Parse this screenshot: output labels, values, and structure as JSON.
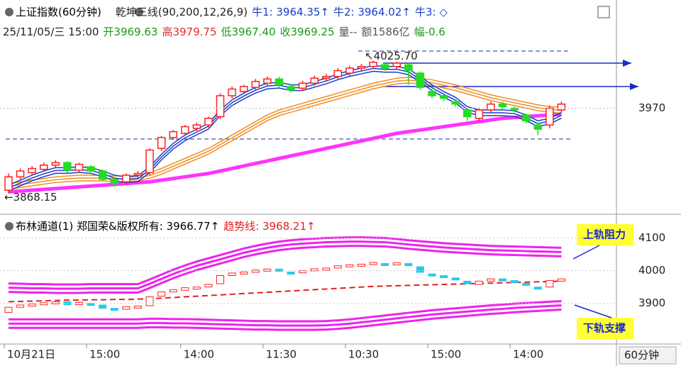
{
  "chart_data": [
    {
      "type": "candlestick",
      "title": "上证指数(60分钟)",
      "legend_items": [
        {
          "text": "乾坤三线(90,200,12,26,9)",
          "color": "#222222"
        },
        {
          "text": "牛1: 3964.35↑",
          "color": "#1a3cc8"
        },
        {
          "text": "牛2: 3964.02↑",
          "color": "#1a3cc8"
        },
        {
          "text": "牛3: ◇",
          "color": "#1a3cc8"
        }
      ],
      "quote_items": [
        {
          "text": "25/11/05/三 15:00",
          "color": "#222222"
        },
        {
          "text": "开3969.63",
          "color": "#1a9a1a"
        },
        {
          "text": "高3979.75",
          "color": "#e03030"
        },
        {
          "text": "低3967.40",
          "color": "#1a9a1a"
        },
        {
          "text": "收3969.25",
          "color": "#1a9a1a"
        },
        {
          "text": "量--",
          "color": "#555555"
        },
        {
          "text": "额1586亿",
          "color": "#555555"
        },
        {
          "text": "幅-0.6",
          "color": "#1a9a1a"
        }
      ],
      "x": [
        "10月21日",
        null,
        null,
        null,
        null,
        null,
        null,
        "15:00",
        null,
        null,
        null,
        null,
        null,
        null,
        null,
        "14:00",
        null,
        null,
        null,
        null,
        null,
        null,
        "11:30",
        null,
        null,
        null,
        null,
        null,
        null,
        "10:30",
        null,
        null,
        null,
        null,
        null,
        null,
        "15:00",
        null,
        null,
        null,
        null,
        null,
        null,
        "14:00",
        null,
        null,
        null,
        null
      ],
      "open": [
        3872,
        3888,
        3893,
        3897,
        3902,
        3905,
        3896,
        3900,
        3895,
        3885,
        3882,
        3890,
        3893,
        3922,
        3935,
        3940,
        3946,
        3950,
        3960,
        3985,
        3990,
        3995,
        4000,
        4005,
        3996,
        3994,
        4000,
        4006,
        4008,
        4012,
        4018,
        4020,
        4022,
        4020,
        4022,
        4012,
        3990,
        3985,
        3978,
        3968,
        3958,
        3968,
        3975,
        3970,
        3962,
        3950,
        3950,
        3968
      ],
      "high": [
        3892,
        3898,
        3901,
        3905,
        3908,
        3907,
        3905,
        3902,
        3897,
        3887,
        3892,
        3895,
        3922,
        3937,
        3944,
        3950,
        3953,
        3960,
        3988,
        3996,
        3998,
        4005,
        4008,
        4008,
        3999,
        4003,
        4009,
        4011,
        4018,
        4021,
        4023,
        4027,
        4024,
        4025.7,
        4024,
        4014,
        3993,
        3988,
        3980,
        3970,
        3970,
        3978,
        3978,
        3972,
        3964,
        3952,
        3973,
        3978
      ],
      "low": [
        3868.15,
        3885,
        3890,
        3894,
        3899,
        3893,
        3893,
        3892,
        3883,
        3876,
        3879,
        3887,
        3890,
        3919,
        3932,
        3937,
        3943,
        3947,
        3957,
        3982,
        3987,
        3992,
        3997,
        3995,
        3989,
        3991,
        3997,
        4003,
        4005,
        4009,
        4015,
        4017,
        4015,
        4017,
        3998,
        3992,
        3982,
        3979,
        3972,
        3955,
        3955,
        3965,
        3969,
        3965,
        3952,
        3938,
        3946,
        3965
      ],
      "close": [
        3888,
        3895,
        3898,
        3902,
        3905,
        3896,
        3903,
        3895,
        3885,
        3880,
        3890,
        3892,
        3920,
        3935,
        3942,
        3948,
        3950,
        3958,
        3985,
        3993,
        3996,
        4002,
        4005,
        3998,
        3992,
        4000,
        4006,
        4008,
        4015,
        4018,
        4020,
        4025,
        4018,
        4024,
        4015,
        3995,
        3985,
        3982,
        3975,
        3960,
        3968,
        3975,
        3972,
        3968,
        3955,
        3945,
        3970,
        3975
      ],
      "lines": [
        {
          "color": "#ff33ff",
          "values": [
            3870,
            3871,
            3872,
            3873,
            3874,
            3875,
            3876,
            3877,
            3878,
            3879,
            3880,
            3881,
            3882,
            3884,
            3886,
            3888,
            3890,
            3892,
            3895,
            3898,
            3901,
            3904,
            3907,
            3910,
            3913,
            3916,
            3919,
            3922,
            3925,
            3928,
            3931,
            3934,
            3937,
            3940,
            3942,
            3944,
            3946,
            3948,
            3950,
            3952,
            3954,
            3956,
            3958,
            3959,
            3960,
            3961,
            3962,
            3963
          ]
        },
        {
          "color": "#f08c1e",
          "values": [
            3880,
            3882,
            3884,
            3886,
            3888,
            3889,
            3890,
            3890,
            3890,
            3889,
            3889,
            3890,
            3893,
            3898,
            3904,
            3910,
            3916,
            3922,
            3930,
            3938,
            3946,
            3954,
            3962,
            3968,
            3972,
            3976,
            3980,
            3984,
            3988,
            3992,
            3996,
            4000,
            4003,
            4006,
            4007,
            4006,
            4004,
            4001,
            3998,
            3994,
            3990,
            3986,
            3983,
            3980,
            3977,
            3974,
            3972,
            3971
          ]
        },
        {
          "color": "#1a3cc8",
          "values": [
            3878,
            3884,
            3890,
            3895,
            3899,
            3899,
            3900,
            3899,
            3895,
            3890,
            3888,
            3889,
            3900,
            3915,
            3928,
            3938,
            3945,
            3952,
            3968,
            3980,
            3988,
            3995,
            4000,
            4001,
            3998,
            3998,
            4002,
            4006,
            4011,
            4015,
            4018,
            4021,
            4020,
            4020,
            4017,
            4008,
            3998,
            3990,
            3983,
            3972,
            3968,
            3968,
            3968,
            3967,
            3962,
            3955,
            3958,
            3965
          ]
        }
      ],
      "high_label": "↖4025.70",
      "low_label": "←3868.15",
      "ylim": [
        3845,
        4091
      ],
      "yticks": [
        3970
      ]
    },
    {
      "type": "line",
      "title": "布林通道(1) 郑国荣&版权所有: 3966.77↑",
      "subtitle": "趋势线: 3968.21↑",
      "series": [
        {
          "color": "#ee22ee",
          "values": [
            3948,
            3947,
            3946,
            3946,
            3945,
            3945,
            3945,
            3946,
            3946,
            3946,
            3946,
            3946,
            3960,
            3975,
            3990,
            4003,
            4015,
            4025,
            4035,
            4045,
            4055,
            4063,
            4070,
            4076,
            4080,
            4083,
            4085,
            4087,
            4088,
            4089,
            4089,
            4088,
            4087,
            4084,
            4080,
            4077,
            4074,
            4071,
            4069,
            4067,
            4065,
            4063,
            4062,
            4061,
            4060,
            4059,
            4058,
            4057
          ]
        },
        {
          "color": "#e02020",
          "values": [
            3905,
            3906,
            3907,
            3908,
            3909,
            3910,
            3910,
            3911,
            3911,
            3912,
            3912,
            3913,
            3914,
            3916,
            3918,
            3920,
            3922,
            3924,
            3926,
            3928,
            3930,
            3932,
            3934,
            3936,
            3938,
            3940,
            3942,
            3944,
            3946,
            3948,
            3950,
            3952,
            3953,
            3954,
            3955,
            3956,
            3957,
            3958,
            3959,
            3960,
            3961,
            3962,
            3963,
            3964,
            3965,
            3966,
            3967,
            3968
          ]
        },
        {
          "color": "#ee22ee",
          "values": [
            3838,
            3838,
            3838,
            3838,
            3838,
            3838,
            3838,
            3838,
            3838,
            3838,
            3838,
            3838,
            3840,
            3840,
            3839,
            3839,
            3838,
            3837,
            3836,
            3835,
            3834,
            3833,
            3833,
            3832,
            3832,
            3832,
            3832,
            3833,
            3835,
            3838,
            3842,
            3846,
            3850,
            3854,
            3858,
            3862,
            3866,
            3869,
            3872,
            3875,
            3878,
            3881,
            3883,
            3886,
            3888,
            3890,
            3892,
            3894
          ]
        }
      ],
      "annotations": [
        "上轨阻力",
        "下轨支撑"
      ],
      "period": "60分钟",
      "ylim": [
        3780,
        4162
      ],
      "yticks": [
        3900,
        4000,
        4100
      ]
    }
  ]
}
